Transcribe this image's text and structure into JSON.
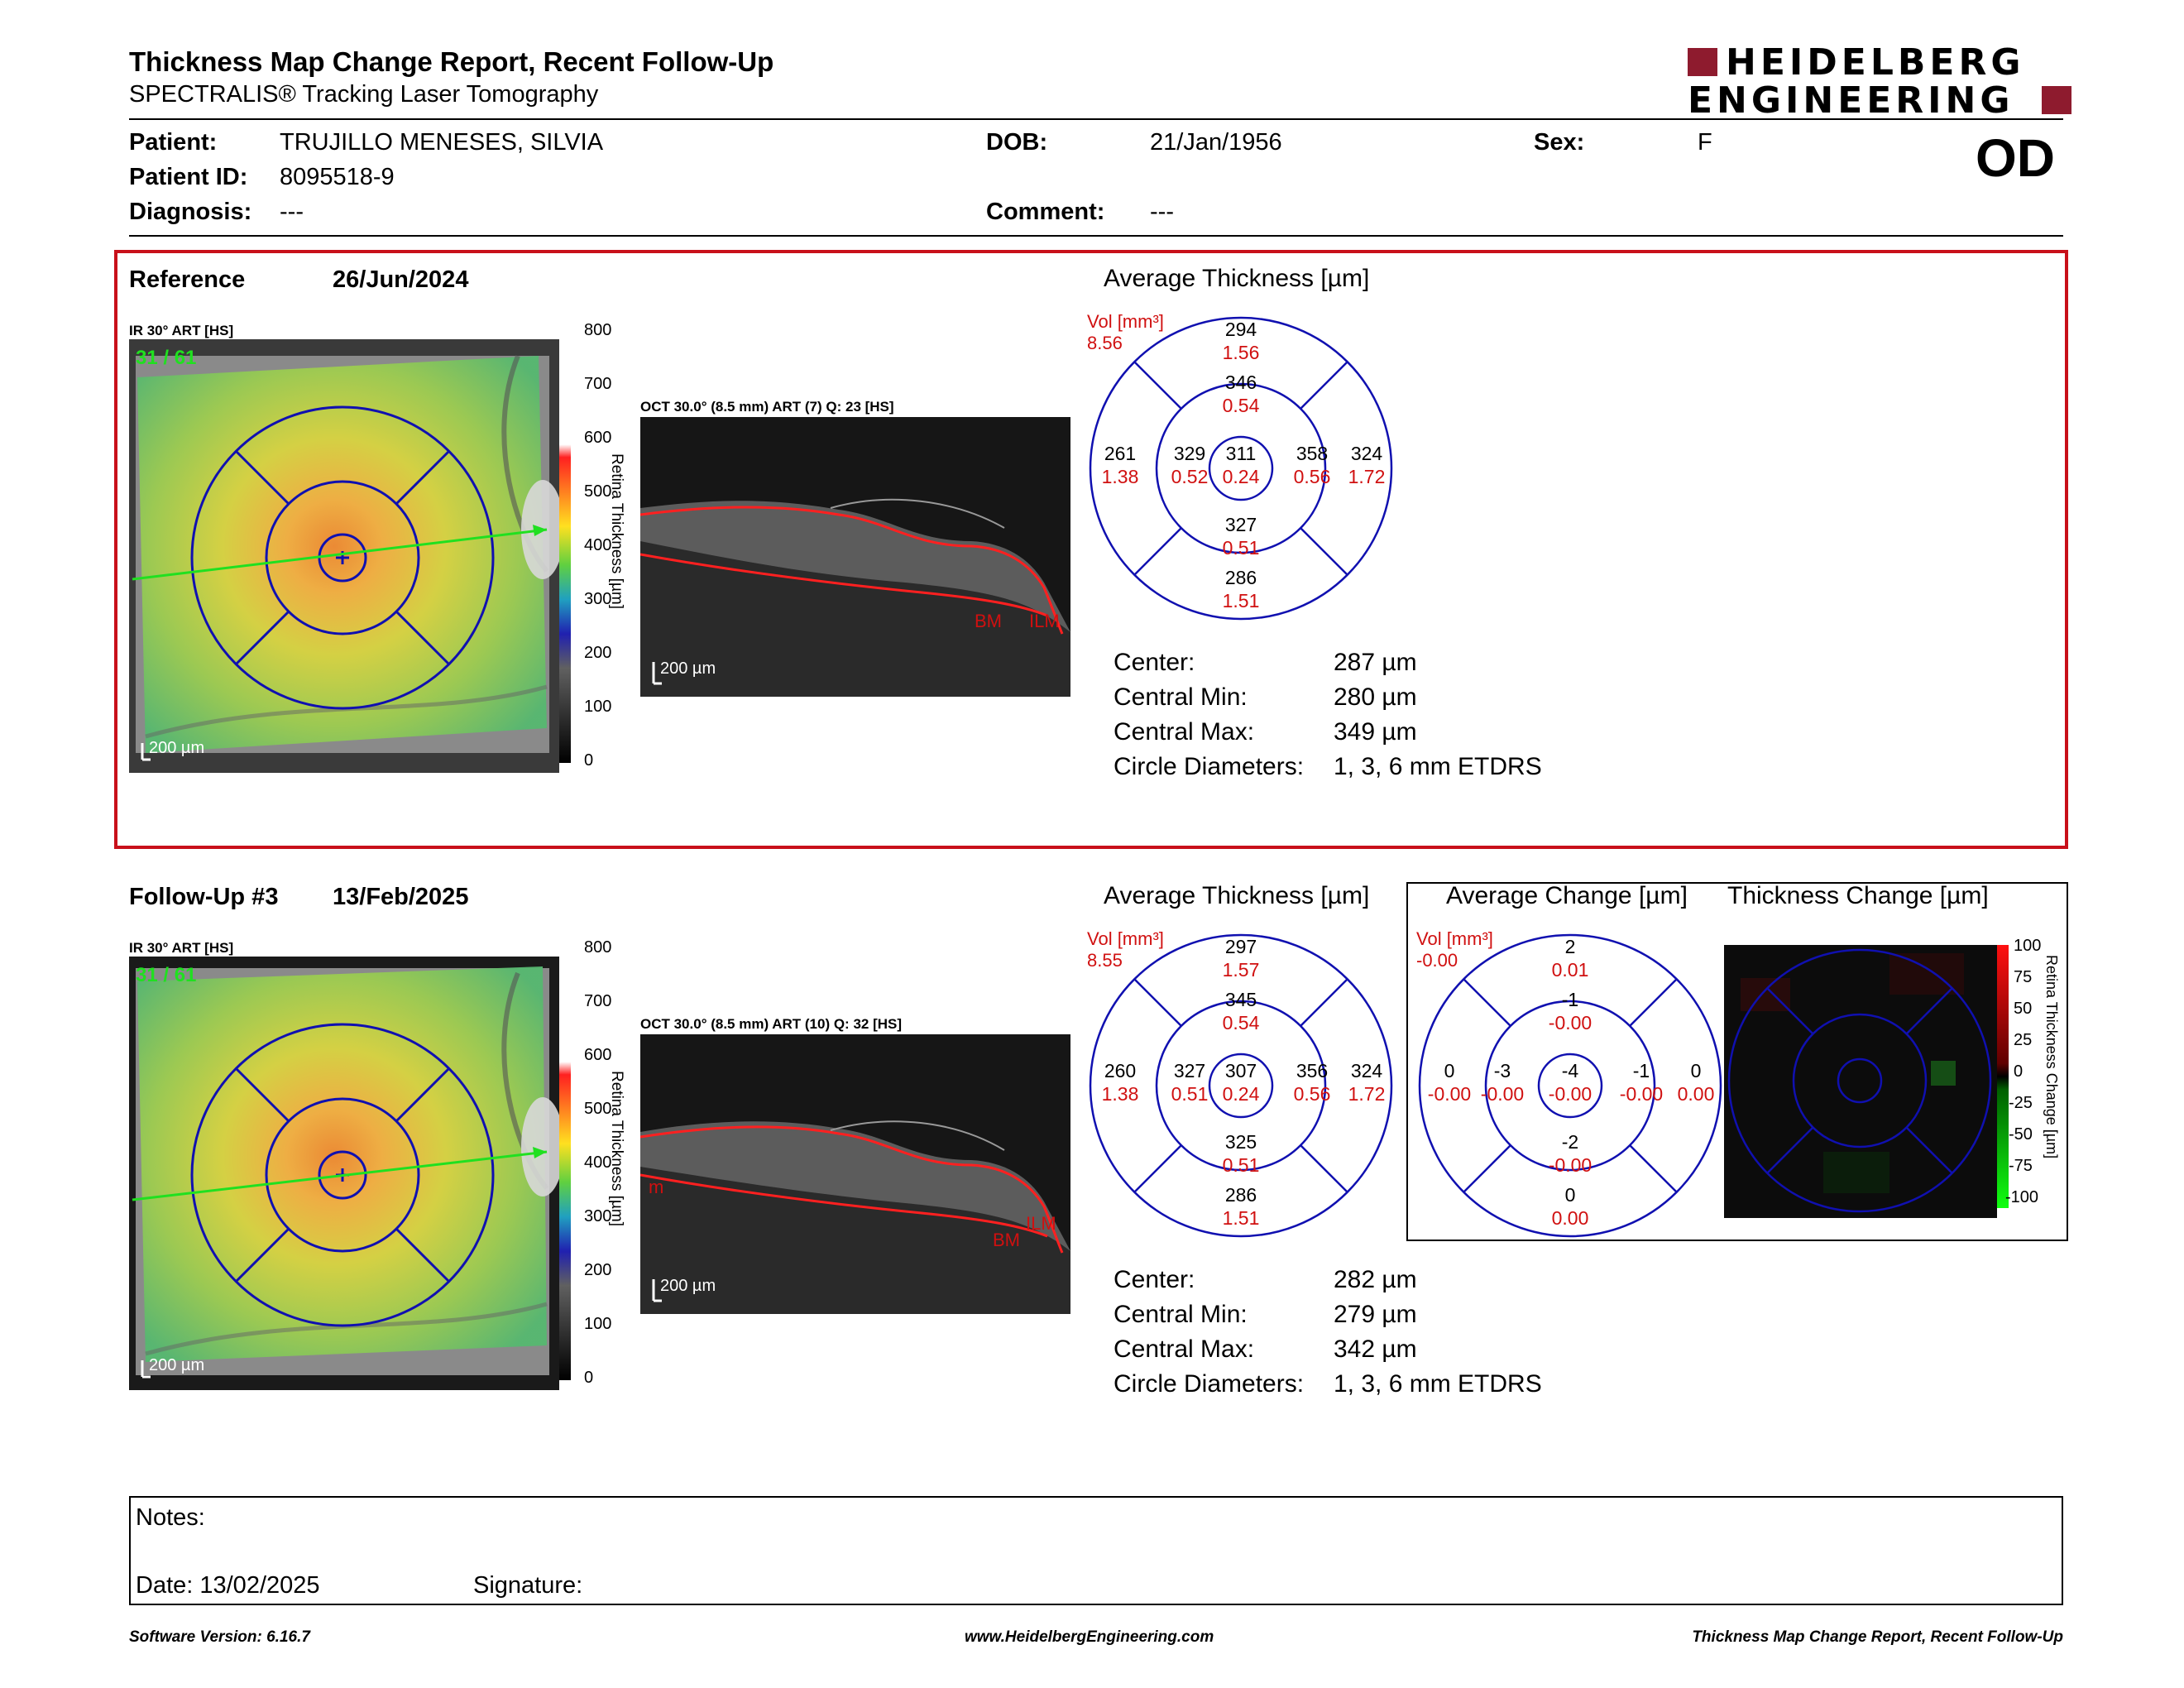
{
  "header": {
    "title": "Thickness Map Change Report, Recent Follow-Up",
    "subtitle": "SPECTRALIS® Tracking Laser Tomography",
    "logo_line1": "HEIDELBERG",
    "logo_line2": "ENGINEERING",
    "eye": "OD"
  },
  "patient": {
    "patient_label": "Patient:",
    "patient_value": "TRUJILLO MENESES, SILVIA",
    "id_label": "Patient ID:",
    "id_value": "8095518-9",
    "diag_label": "Diagnosis:",
    "diag_value": "---",
    "dob_label": "DOB:",
    "dob_value": "21/Jan/1956",
    "comment_label": "Comment:",
    "comment_value": "---",
    "sex_label": "Sex:",
    "sex_value": "F"
  },
  "reference": {
    "label": "Reference",
    "date": "26/Jun/2024",
    "ir_label": "IR 30° ART [HS]",
    "ir_overlay": "31 / 61",
    "ir_scale": "200 µm",
    "oct_label": "OCT 30.0° (8.5 mm) ART (7) Q: 23 [HS]",
    "oct_scale": "200 µm",
    "oct_markers": [
      "BM",
      "ILM"
    ],
    "avg_title": "Average Thickness [µm]",
    "vol_label": "Vol [mm³]",
    "vol_total": "8.56",
    "grid": {
      "outer_sup": [
        "294",
        "1.56"
      ],
      "inner_sup": [
        "346",
        "0.54"
      ],
      "outer_nas": [
        "324",
        "1.72"
      ],
      "inner_nas": [
        "358",
        "0.56"
      ],
      "center": [
        "311",
        "0.24"
      ],
      "inner_tmp": [
        "329",
        "0.52"
      ],
      "outer_tmp": [
        "261",
        "1.38"
      ],
      "inner_inf": [
        "327",
        "0.51"
      ],
      "outer_inf": [
        "286",
        "1.51"
      ]
    },
    "stats": [
      [
        "Center:",
        "287 µm"
      ],
      [
        "Central Min:",
        "280 µm"
      ],
      [
        "Central Max:",
        "349 µm"
      ],
      [
        "Circle Diameters:",
        "1, 3, 6 mm ETDRS"
      ]
    ]
  },
  "followup": {
    "label": "Follow-Up #3",
    "date": "13/Feb/2025",
    "ir_label": "IR 30° ART [HS]",
    "ir_overlay": "31 / 61",
    "ir_scale": "200 µm",
    "oct_label": "OCT 30.0° (8.5 mm) ART (10) Q: 32 [HS]",
    "oct_scale": "200 µm",
    "oct_markers": [
      "m",
      "BM",
      "ILM"
    ],
    "avg_title": "Average Thickness [µm]",
    "vol_label": "Vol [mm³]",
    "vol_total": "8.55",
    "grid": {
      "outer_sup": [
        "297",
        "1.57"
      ],
      "inner_sup": [
        "345",
        "0.54"
      ],
      "outer_nas": [
        "324",
        "1.72"
      ],
      "inner_nas": [
        "356",
        "0.56"
      ],
      "center": [
        "307",
        "0.24"
      ],
      "inner_tmp": [
        "327",
        "0.51"
      ],
      "outer_tmp": [
        "260",
        "1.38"
      ],
      "inner_inf": [
        "325",
        "0.51"
      ],
      "outer_inf": [
        "286",
        "1.51"
      ]
    },
    "stats": [
      [
        "Center:",
        "282 µm"
      ],
      [
        "Central Min:",
        "279 µm"
      ],
      [
        "Central Max:",
        "342 µm"
      ],
      [
        "Circle Diameters:",
        "1, 3, 6 mm ETDRS"
      ]
    ],
    "change_title": "Average Change [µm]",
    "change_vol_label": "Vol [mm³]",
    "change_vol_total": "-0.00",
    "change_grid": {
      "outer_sup": [
        "2",
        "0.01"
      ],
      "inner_sup": [
        "-1",
        "-0.00"
      ],
      "outer_nas": [
        "0",
        "0.00"
      ],
      "inner_nas": [
        "-1",
        "-0.00"
      ],
      "center": [
        "-4",
        "-0.00"
      ],
      "inner_tmp": [
        "-3",
        "-0.00"
      ],
      "outer_tmp": [
        "0",
        "-0.00"
      ],
      "inner_inf": [
        "-2",
        "-0.00"
      ],
      "outer_inf": [
        "0",
        "0.00"
      ]
    },
    "thick_change_title": "Thickness Change [µm]",
    "thick_change_axis": "Retina Thickness Change [µm]",
    "thick_change_ticks": [
      "100",
      "75",
      "50",
      "25",
      "0",
      "-25",
      "-50",
      "-75",
      "-100"
    ]
  },
  "thickness_scale": {
    "axis_label": "Retina Thickness [µm]",
    "ticks": [
      "800",
      "700",
      "600",
      "500",
      "400",
      "300",
      "200",
      "100",
      "0"
    ]
  },
  "notes": {
    "notes_label": "Notes:",
    "date_label": "Date: 13/02/2025",
    "signature_label": "Signature:"
  },
  "footer": {
    "left": "Software Version: 6.16.7",
    "center": "www.HeidelbergEngineering.com",
    "right": "Thickness Map Change Report, Recent Follow-Up"
  },
  "colors": {
    "accent_red": "#c8101a",
    "grid_blue": "#1010b0",
    "logo_red": "#8e1b2e",
    "value_red": "#d01010"
  }
}
